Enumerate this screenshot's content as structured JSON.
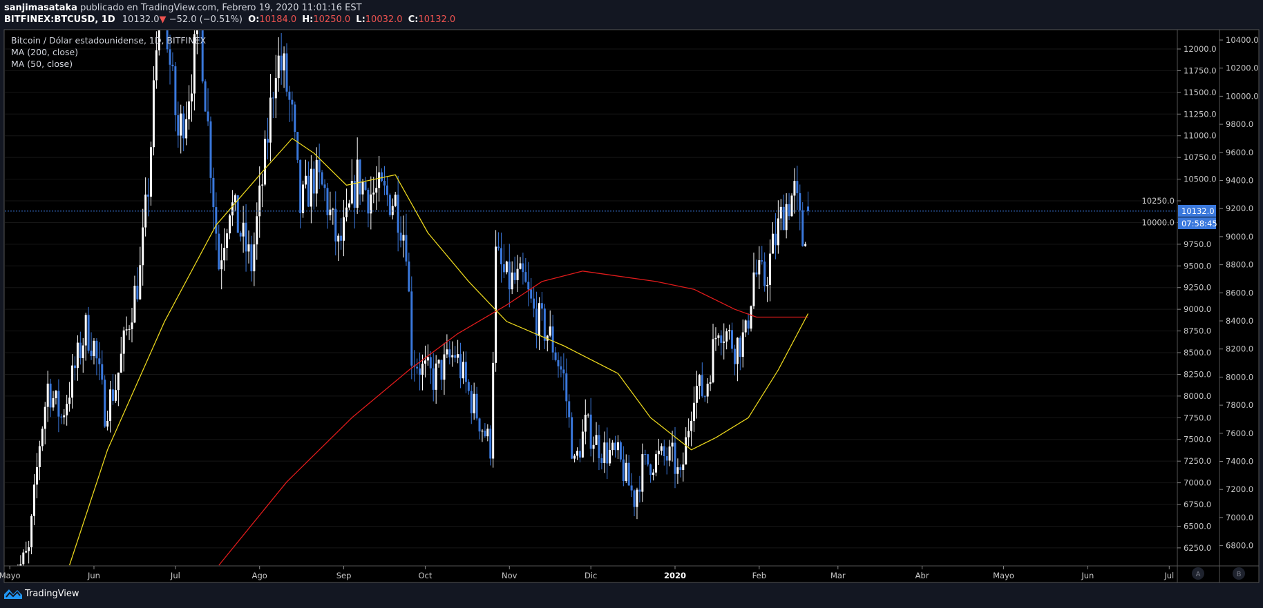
{
  "header": {
    "author": "sanjimasataka",
    "published": "publicado en TradingView.com, Febrero 19, 2020 11:01:16 EST",
    "symbol": "BITFINEX:BTCUSD, 1D",
    "last": "10132.0",
    "change": "−52.0 (−0.51%)",
    "o_label": "O:",
    "o": "10184.0",
    "h_label": "H:",
    "h": "10250.0",
    "l_label": "L:",
    "l": "10032.0",
    "c_label": "C:",
    "c": "10132.0"
  },
  "legend": {
    "title": "Bitcoin / Dólar estadounidense, 1D, BITFINEX",
    "ma200": "MA (200, close)",
    "ma50": "MA (50, close)"
  },
  "footer": {
    "brand": "TradingView"
  },
  "colors": {
    "up": "#ffffff",
    "down": "#3a78dc",
    "ma50": "#e8d41c",
    "ma200": "#e01b1b",
    "price_line": "#3a78dc",
    "background": "#000000"
  },
  "chart_data": {
    "type": "candlestick",
    "title": "Bitcoin / Dólar estadounidense, 1D, BITFINEX",
    "last_price_label": "10132.0",
    "countdown_label": "07:58:45",
    "ylim": [
      6050,
      12200
    ],
    "y_ticks": [
      "12000.0",
      "11750.0",
      "11500.0",
      "11250.0",
      "11000.0",
      "10750.0",
      "10500.0",
      "10250.0",
      "10000.0",
      "9750.0",
      "9500.0",
      "9250.0",
      "9000.0",
      "8750.0",
      "8500.0",
      "8250.0",
      "8000.0",
      "7750.0",
      "7500.0",
      "7250.0",
      "7000.0",
      "6750.0",
      "6500.0",
      "6250.0"
    ],
    "y2_ticks": [
      "10400.0",
      "10200.0",
      "10000.0",
      "9800.0",
      "9600.0",
      "9400.0",
      "9200.0",
      "9000.0",
      "8800.0",
      "8600.0",
      "8400.0",
      "8200.0",
      "8000.0",
      "7800.0",
      "7600.0",
      "7400.0",
      "7200.0",
      "7000.0",
      "6800.0"
    ],
    "x_ticks": [
      {
        "label": "Mayo",
        "date": "2019-05-01"
      },
      {
        "label": "Jun",
        "date": "2019-06-01"
      },
      {
        "label": "Jul",
        "date": "2019-07-01"
      },
      {
        "label": "Ago",
        "date": "2019-08-01"
      },
      {
        "label": "Sep",
        "date": "2019-09-01"
      },
      {
        "label": "Oct",
        "date": "2019-10-01"
      },
      {
        "label": "Nov",
        "date": "2019-11-01"
      },
      {
        "label": "Dic",
        "date": "2019-12-01"
      },
      {
        "label": "2020",
        "date": "2020-01-01"
      },
      {
        "label": "Feb",
        "date": "2020-02-01"
      },
      {
        "label": "Mar",
        "date": "2020-03-01"
      },
      {
        "label": "Abr",
        "date": "2020-04-01"
      },
      {
        "label": "Mayo",
        "date": "2020-05-01"
      },
      {
        "label": "Jun",
        "date": "2020-06-01"
      },
      {
        "label": "Jul",
        "date": "2020-07-01"
      }
    ],
    "axis_buttons": [
      "A",
      "B"
    ],
    "close_path": [
      [
        "2019-05-02",
        5900
      ],
      [
        "2019-05-08",
        6200
      ],
      [
        "2019-05-12",
        7470
      ],
      [
        "2019-05-15",
        8120
      ],
      [
        "2019-05-20",
        7750
      ],
      [
        "2019-05-29",
        8770
      ],
      [
        "2019-06-01",
        8580
      ],
      [
        "2019-06-05",
        7840
      ],
      [
        "2019-06-09",
        8120
      ],
      [
        "2019-06-15",
        9050
      ],
      [
        "2019-06-18",
        9420
      ],
      [
        "2019-06-21",
        10430
      ],
      [
        "2019-06-26",
        12900
      ],
      [
        "2019-06-29",
        11820
      ],
      [
        "2019-07-02",
        10990
      ],
      [
        "2019-07-05",
        11360
      ],
      [
        "2019-07-10",
        12300
      ],
      [
        "2019-07-14",
        10710
      ],
      [
        "2019-07-17",
        9510
      ],
      [
        "2019-07-21",
        10250
      ],
      [
        "2019-07-26",
        9790
      ],
      [
        "2019-07-29",
        9510
      ],
      [
        "2019-08-03",
        10710
      ],
      [
        "2019-08-07",
        11900
      ],
      [
        "2019-08-10",
        11730
      ],
      [
        "2019-08-13",
        11180
      ],
      [
        "2019-08-16",
        10160
      ],
      [
        "2019-08-21",
        10530
      ],
      [
        "2019-08-25",
        10340
      ],
      [
        "2019-08-30",
        9700
      ],
      [
        "2019-09-02",
        9970
      ],
      [
        "2019-09-06",
        10530
      ],
      [
        "2019-09-10",
        10340
      ],
      [
        "2019-09-14",
        10340
      ],
      [
        "2019-09-20",
        10250
      ],
      [
        "2019-09-24",
        9790
      ],
      [
        "2019-09-26",
        8490
      ],
      [
        "2019-09-30",
        8300
      ],
      [
        "2019-10-04",
        8210
      ],
      [
        "2019-10-12",
        8490
      ],
      [
        "2019-10-17",
        8030
      ],
      [
        "2019-10-25",
        7420
      ],
      [
        "2019-10-27",
        9600
      ],
      [
        "2019-10-31",
        9320
      ],
      [
        "2019-11-06",
        9320
      ],
      [
        "2019-11-10",
        8950
      ],
      [
        "2019-11-16",
        8680
      ],
      [
        "2019-11-21",
        8210
      ],
      [
        "2019-11-25",
        7190
      ],
      [
        "2019-11-29",
        7660
      ],
      [
        "2019-12-05",
        7380
      ],
      [
        "2019-12-11",
        7290
      ],
      [
        "2019-12-17",
        6820
      ],
      [
        "2019-12-20",
        7190
      ],
      [
        "2019-12-26",
        7290
      ],
      [
        "2019-12-31",
        7290
      ],
      [
        "2020-01-03",
        7010
      ],
      [
        "2020-01-08",
        8120
      ],
      [
        "2020-01-12",
        8030
      ],
      [
        "2020-01-17",
        8860
      ],
      [
        "2020-01-23",
        8580
      ],
      [
        "2020-01-27",
        8680
      ],
      [
        "2020-01-30",
        9420
      ],
      [
        "2020-02-03",
        9320
      ],
      [
        "2020-02-06",
        9700
      ],
      [
        "2020-02-10",
        10160
      ],
      [
        "2020-02-14",
        10340
      ],
      [
        "2020-02-17",
        9790
      ],
      [
        "2020-02-19",
        10132
      ]
    ],
    "ma50": [
      [
        "2019-05-23",
        6050
      ],
      [
        "2019-06-06",
        7380
      ],
      [
        "2019-06-27",
        8860
      ],
      [
        "2019-07-16",
        9970
      ],
      [
        "2019-08-03",
        10620
      ],
      [
        "2019-08-13",
        10970
      ],
      [
        "2019-08-21",
        10800
      ],
      [
        "2019-09-02",
        10430
      ],
      [
        "2019-09-20",
        10550
      ],
      [
        "2019-10-02",
        9880
      ],
      [
        "2019-10-17",
        9320
      ],
      [
        "2019-10-31",
        8860
      ],
      [
        "2019-11-21",
        8580
      ],
      [
        "2019-12-11",
        8260
      ],
      [
        "2019-12-23",
        7750
      ],
      [
        "2020-01-07",
        7380
      ],
      [
        "2020-01-16",
        7520
      ],
      [
        "2020-01-28",
        7750
      ],
      [
        "2020-02-08",
        8300
      ],
      [
        "2020-02-19",
        8950
      ]
    ],
    "ma200": [
      [
        "2019-07-17",
        6050
      ],
      [
        "2019-08-11",
        7010
      ],
      [
        "2019-09-04",
        7750
      ],
      [
        "2019-09-25",
        8300
      ],
      [
        "2019-10-13",
        8720
      ],
      [
        "2019-10-31",
        9050
      ],
      [
        "2019-11-13",
        9320
      ],
      [
        "2019-11-28",
        9440
      ],
      [
        "2019-12-25",
        9320
      ],
      [
        "2020-01-08",
        9230
      ],
      [
        "2020-01-23",
        9000
      ],
      [
        "2020-01-31",
        8910
      ],
      [
        "2020-02-19",
        8910
      ]
    ]
  }
}
